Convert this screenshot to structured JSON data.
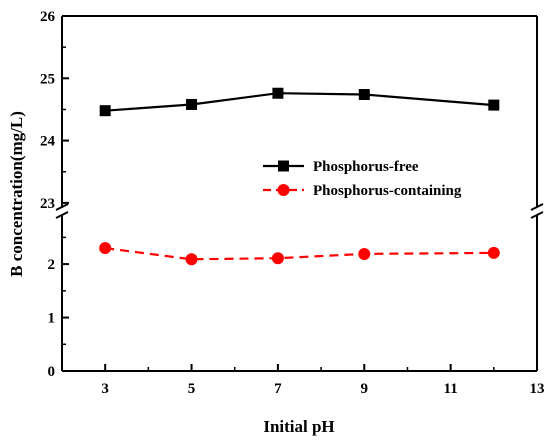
{
  "chart_data": {
    "type": "line",
    "xlabel": "Initial pH",
    "ylabel": "B concentration(mg/L)",
    "xlim": [
      2,
      13
    ],
    "x_ticks": [
      3,
      5,
      7,
      9,
      11,
      13
    ],
    "x": [
      3,
      5,
      7,
      9,
      12
    ],
    "axis_break": true,
    "lower_panel": {
      "ylim": [
        0,
        2.9
      ],
      "y_ticks": [
        0,
        1,
        2
      ]
    },
    "upper_panel": {
      "ylim": [
        22.95,
        26
      ],
      "y_ticks": [
        23,
        24,
        25,
        26
      ]
    },
    "series": [
      {
        "name": "Phosphorus-free",
        "values": [
          24.48,
          24.58,
          24.76,
          24.74,
          24.57
        ],
        "color": "#000000",
        "marker": "square",
        "line": "solid",
        "panel": "upper"
      },
      {
        "name": "Phosphorus-containing",
        "values": [
          2.3,
          2.09,
          2.11,
          2.19,
          2.21
        ],
        "color": "#ff0000",
        "marker": "circle",
        "line": "dashed",
        "panel": "lower"
      }
    ],
    "legend_position": "center-right",
    "grid": false
  }
}
